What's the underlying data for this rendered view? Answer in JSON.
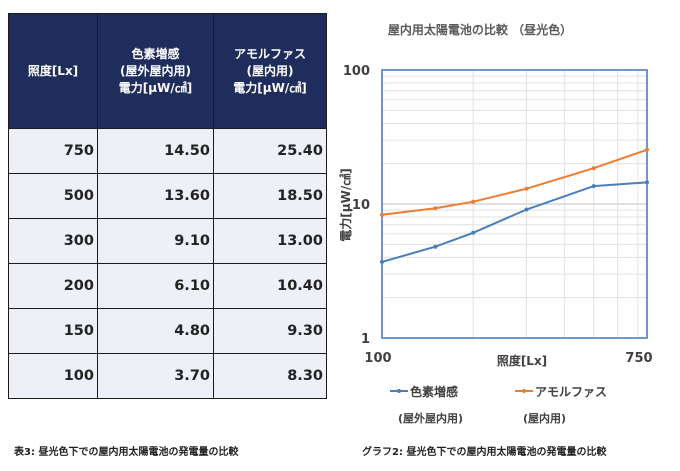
{
  "table": {
    "headers": [
      [
        "照度[Lx]"
      ],
      [
        "色素増感",
        "(屋外屋内用)",
        "電力[μW/㎠]"
      ],
      [
        "アモルファス",
        "(屋内用)",
        "電力[μW/㎠]"
      ]
    ],
    "rows": [
      [
        "750",
        "14.50",
        "25.40"
      ],
      [
        "500",
        "13.60",
        "18.50"
      ],
      [
        "300",
        "9.10",
        "13.00"
      ],
      [
        "200",
        "6.10",
        "10.40"
      ],
      [
        "150",
        "4.80",
        "9.30"
      ],
      [
        "100",
        "3.70",
        "8.30"
      ]
    ],
    "caption": "表3: 昼光色下での屋内用太陽電池の発電量の比較"
  },
  "chart_caption": "グラフ2: 昼光色下での屋内用太陽電池の発電量の比較",
  "colors": {
    "header_bg": "#1f2d5c",
    "cell_bg": "#eef0f7",
    "series_blue": "#4a7ebb",
    "series_orange": "#ed7d31",
    "plot_border": "#4472c4"
  },
  "chart_data": {
    "type": "line",
    "title": "屋内用太陽電池の比較 （昼光色）",
    "xlabel": "照度[Lx]",
    "ylabel": "電力[μW/㎠]",
    "x_scale": "log",
    "y_scale": "log",
    "xlim": [
      100,
      750
    ],
    "ylim": [
      1,
      100
    ],
    "x_ticks": [
      "100",
      "750"
    ],
    "y_ticks": [
      "1",
      "10",
      "100"
    ],
    "grid": true,
    "legend_position": "bottom",
    "series": [
      {
        "name": "色素増感",
        "sub": "(屋外屋内用)",
        "color": "#4a7ebb",
        "points": [
          [
            100,
            3.7
          ],
          [
            150,
            4.8
          ],
          [
            200,
            6.1
          ],
          [
            300,
            9.1
          ],
          [
            500,
            13.6
          ],
          [
            750,
            14.5
          ]
        ]
      },
      {
        "name": "アモルファス",
        "sub": "(屋内用)",
        "color": "#ed7d31",
        "points": [
          [
            100,
            8.3
          ],
          [
            150,
            9.3
          ],
          [
            200,
            10.4
          ],
          [
            300,
            13.0
          ],
          [
            500,
            18.5
          ],
          [
            750,
            25.4
          ]
        ]
      }
    ]
  }
}
